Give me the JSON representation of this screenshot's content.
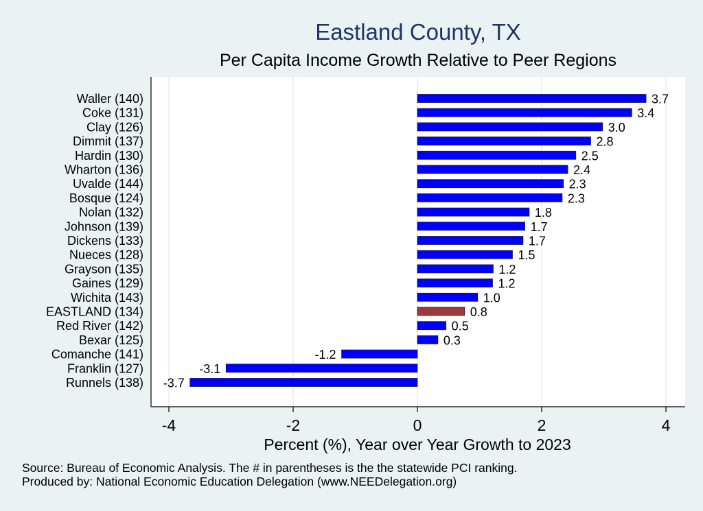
{
  "title": "Eastland County, TX",
  "subtitle": "Per Capita Income Growth Relative to Peer Regions",
  "footer": {
    "source": "Source: Bureau of Economic Analysis. The # in parentheses is the the statewide PCI ranking.",
    "produced_by": "Produced by: National Economic Education Delegation (www.NEEDelegation.org)"
  },
  "colors": {
    "background": "#eaf2f3",
    "plot_background": "#ffffff",
    "bar": "#0000ff",
    "highlight_bar": "#9b3b3e",
    "title": "#1f3566"
  },
  "chart_data": {
    "type": "bar",
    "orientation": "horizontal",
    "title": "Eastland County, TX",
    "subtitle": "Per Capita Income Growth Relative to Peer Regions",
    "xlabel": "Percent (%), Year over Year Growth to 2023",
    "ylabel": "",
    "xlim": [
      -4.3,
      4.3
    ],
    "xticks": [
      -4,
      -2,
      0,
      2,
      4
    ],
    "xtick_labels": [
      "-4",
      "-2",
      "0",
      "2",
      "4"
    ],
    "grid": true,
    "legend": "none",
    "highlight": "EASTLAND (134)",
    "categories": [
      "Waller (140)",
      "Coke (131)",
      "Clay (126)",
      "Dimmit (137)",
      "Hardin (130)",
      "Wharton (136)",
      "Uvalde (144)",
      "Bosque (124)",
      "Nolan (132)",
      "Johnson (139)",
      "Dickens (133)",
      "Nueces (128)",
      "Grayson (135)",
      "Gaines (129)",
      "Wichita (143)",
      "EASTLAND (134)",
      "Red River (142)",
      "Bexar (125)",
      "Comanche (141)",
      "Franklin (127)",
      "Runnels (138)"
    ],
    "values": [
      3.68,
      3.45,
      2.98,
      2.79,
      2.55,
      2.42,
      2.35,
      2.33,
      1.8,
      1.73,
      1.7,
      1.53,
      1.22,
      1.21,
      0.97,
      0.76,
      0.46,
      0.33,
      -1.22,
      -3.08,
      -3.66
    ],
    "value_labels": [
      "3.7",
      "3.4",
      "3.0",
      "2.8",
      "2.5",
      "2.4",
      "2.3",
      "2.3",
      "1.8",
      "1.7",
      "1.7",
      "1.5",
      "1.2",
      "1.2",
      "1.0",
      "0.8",
      "0.5",
      "0.3",
      "-1.2",
      "-3.1",
      "-3.7"
    ]
  }
}
